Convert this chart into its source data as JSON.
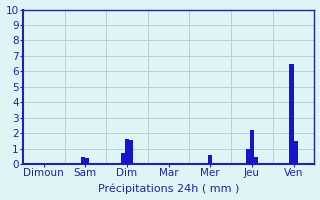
{
  "categories": [
    "Dimoun",
    "Sam",
    "Dim",
    "Mar",
    "Mer",
    "Jeu",
    "Ven"
  ],
  "bar_groups": [
    [],
    [
      0.45,
      0.4
    ],
    [
      0.75,
      1.6,
      1.55
    ],
    [],
    [
      0.6
    ],
    [
      1.0,
      2.2,
      0.45
    ],
    [
      6.5,
      1.5
    ]
  ],
  "bar_color": "#1515cc",
  "bg_color": "#dff4f4",
  "grid_color": "#b8d0d0",
  "axis_color": "#2222aa",
  "xlabel": "Précipitations 24h ( mm )",
  "xlabel_fontsize": 8,
  "ylim": [
    0,
    10
  ],
  "yticks": [
    0,
    1,
    2,
    3,
    4,
    5,
    6,
    7,
    8,
    9,
    10
  ],
  "tick_fontsize": 7.5,
  "label_fontsize": 7.5,
  "n_cats": 7
}
